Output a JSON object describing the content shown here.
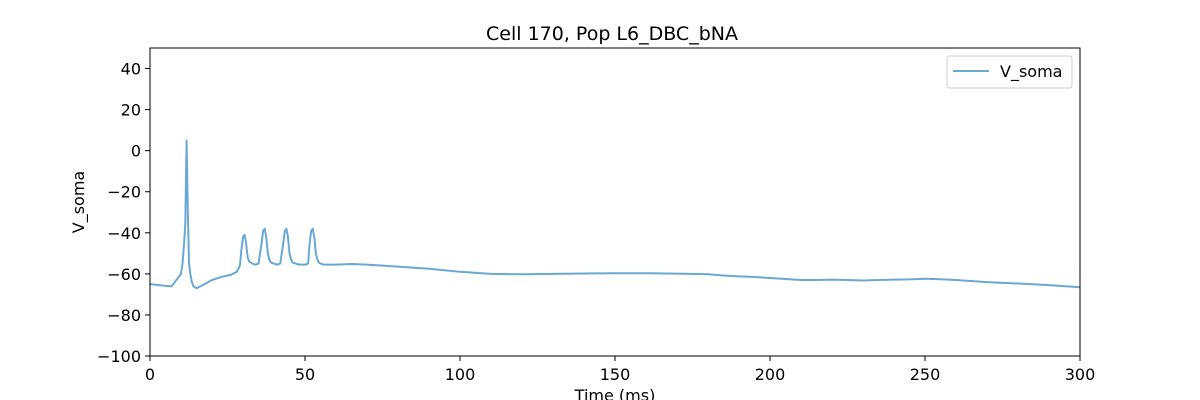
{
  "chart_data": {
    "type": "line",
    "title": "Cell 170, Pop L6_DBC_bNA",
    "xlabel": "Time (ms)",
    "ylabel": "V_soma",
    "xlim": [
      0,
      300
    ],
    "ylim": [
      -100,
      50
    ],
    "xticks": [
      0,
      50,
      100,
      150,
      200,
      250,
      300
    ],
    "yticks": [
      -100,
      -80,
      -60,
      -40,
      -20,
      0,
      20,
      40
    ],
    "grid": false,
    "legend": "top-right",
    "series": [
      {
        "name": "V_soma",
        "color": "#6aa8d4",
        "x": [
          0,
          3,
          6,
          7,
          8,
          9,
          10,
          10.5,
          11,
          11.4,
          11.8,
          12.2,
          12.6,
          13,
          13.5,
          14,
          15,
          17,
          20,
          23,
          26,
          28,
          29,
          29.5,
          30,
          30.5,
          31,
          31.5,
          32,
          33,
          34,
          35,
          36,
          36.5,
          37,
          37.5,
          38,
          38.5,
          39,
          40,
          41,
          42,
          43,
          43.5,
          44,
          44.5,
          45,
          45.5,
          46,
          47,
          48,
          49,
          50,
          51,
          51.5,
          52,
          52.5,
          53,
          53.5,
          54,
          54.5,
          55,
          56,
          57,
          58,
          60,
          65,
          70,
          80,
          90,
          100,
          110,
          120,
          130,
          140,
          150,
          160,
          170,
          180,
          185,
          190,
          195,
          200,
          205,
          210,
          215,
          220,
          225,
          230,
          235,
          240,
          245,
          250,
          255,
          260,
          270,
          280,
          290,
          300
        ],
        "y": [
          -65,
          -65.5,
          -66,
          -66,
          -64,
          -62,
          -60,
          -55,
          -45,
          -35,
          5,
          -30,
          -55,
          -60,
          -64,
          -66,
          -67,
          -65.5,
          -63,
          -61.5,
          -60.5,
          -59,
          -56,
          -48,
          -42,
          -41,
          -45,
          -52,
          -54,
          -55,
          -55.5,
          -55,
          -45,
          -39,
          -38,
          -42,
          -50,
          -53,
          -54.5,
          -55,
          -55.5,
          -55,
          -45,
          -39,
          -38,
          -42,
          -50,
          -53,
          -54.5,
          -55,
          -55.5,
          -55.5,
          -55.5,
          -55,
          -45,
          -39,
          -38,
          -42,
          -50,
          -53,
          -54.5,
          -55,
          -55.5,
          -55.5,
          -55.5,
          -55.5,
          -55.2,
          -55.5,
          -56.5,
          -57.5,
          -59,
          -60,
          -60.2,
          -60,
          -59.8,
          -59.7,
          -59.7,
          -59.9,
          -60.2,
          -60.8,
          -61.2,
          -61.5,
          -62,
          -62.5,
          -63,
          -63,
          -62.8,
          -63,
          -63.2,
          -63,
          -62.8,
          -62.7,
          -62.4,
          -62.6,
          -63,
          -64,
          -64.7,
          -65.5,
          -66.5
        ]
      }
    ]
  }
}
